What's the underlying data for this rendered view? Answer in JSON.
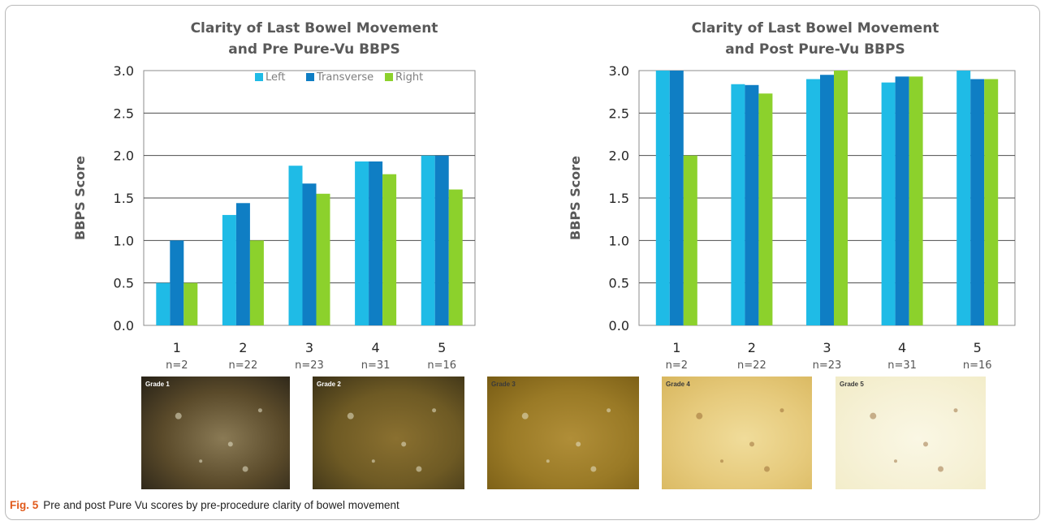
{
  "chart_data": [
    {
      "type": "bar",
      "title_lines": [
        "Clarity of Last Bowel Movement",
        "and Pre Pure-Vu BBPS"
      ],
      "ylabel": "BBPS Score",
      "ylim": [
        0,
        3
      ],
      "yticks": [
        "0.0",
        "0.5",
        "1.0",
        "1.5",
        "2.0",
        "2.5",
        "3.0"
      ],
      "grid": true,
      "legend_position": "top-center",
      "categories": [
        "1",
        "2",
        "3",
        "4",
        "5"
      ],
      "n_labels": [
        "n=2",
        "n=22",
        "n=23",
        "n=31",
        "n=16"
      ],
      "series": [
        {
          "name": "Left",
          "color": "#1fbbe6",
          "values": [
            0.5,
            1.3,
            1.88,
            1.93,
            2.0
          ]
        },
        {
          "name": "Transverse",
          "color": "#0f7ec4",
          "values": [
            1.0,
            1.44,
            1.67,
            1.93,
            2.0
          ]
        },
        {
          "name": "Right",
          "color": "#8cd12c",
          "values": [
            0.5,
            1.0,
            1.55,
            1.78,
            1.6
          ]
        }
      ]
    },
    {
      "type": "bar",
      "title_lines": [
        "Clarity of Last Bowel Movement",
        "and Post Pure-Vu BBPS"
      ],
      "ylabel": "BBPS Score",
      "ylim": [
        0,
        3
      ],
      "yticks": [
        "0.0",
        "0.5",
        "1.0",
        "1.5",
        "2.0",
        "2.5",
        "3.0"
      ],
      "grid": true,
      "legend_position": "none",
      "categories": [
        "1",
        "2",
        "3",
        "4",
        "5"
      ],
      "n_labels": [
        "n=2",
        "n=22",
        "n=23",
        "n=31",
        "n=16"
      ],
      "series": [
        {
          "name": "Left",
          "color": "#1fbbe6",
          "values": [
            3.0,
            2.84,
            2.9,
            2.86,
            3.0
          ]
        },
        {
          "name": "Transverse",
          "color": "#0f7ec4",
          "values": [
            3.0,
            2.83,
            2.95,
            2.93,
            2.9
          ]
        },
        {
          "name": "Right",
          "color": "#8cd12c",
          "values": [
            2.0,
            2.73,
            3.0,
            2.93,
            2.9
          ]
        }
      ]
    }
  ],
  "grades": [
    {
      "label": "Grade 1",
      "colors": [
        "#2a2418",
        "#5a4a2a",
        "#8a7a55"
      ]
    },
    {
      "label": "Grade 2",
      "colors": [
        "#3e3418",
        "#6e5a24",
        "#8a7030"
      ]
    },
    {
      "label": "Grade 3",
      "colors": [
        "#7a5e16",
        "#9a7a26",
        "#b08e38"
      ]
    },
    {
      "label": "Grade 4",
      "colors": [
        "#d9b860",
        "#e6ca7c",
        "#f0dc9a"
      ]
    },
    {
      "label": "Grade 5",
      "colors": [
        "#f2ecc8",
        "#f6f1d6",
        "#faf7e4"
      ]
    }
  ],
  "caption": {
    "fig_label": "Fig. 5",
    "text": "Pre and post Pure Vu scores by pre-procedure clarity of bowel movement"
  }
}
